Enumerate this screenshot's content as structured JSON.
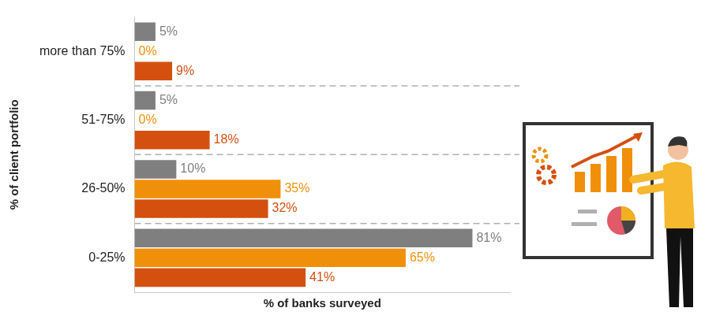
{
  "chart_data": {
    "type": "bar",
    "orientation": "horizontal",
    "categories": [
      "more than 75%",
      "51-75%",
      "26-50%",
      "0-25%"
    ],
    "series": [
      {
        "color": "#7f7f7f",
        "values": [
          5,
          5,
          10,
          81
        ],
        "value_labels": [
          "5%",
          "5%",
          "10%",
          "81%"
        ]
      },
      {
        "color": "#f0900a",
        "values": [
          0,
          0,
          35,
          65
        ],
        "value_labels": [
          "0%",
          "0%",
          "35%",
          "65%"
        ]
      },
      {
        "color": "#d4500f",
        "values": [
          9,
          18,
          32,
          41
        ],
        "value_labels": [
          "9%",
          "18%",
          "32%",
          "41%"
        ]
      }
    ],
    "xlabel": "% of banks surveyed",
    "ylabel": "% of client portfolio",
    "xlim": [
      0,
      90
    ],
    "grid": false,
    "data_labels": true,
    "tick_labels": "y"
  }
}
